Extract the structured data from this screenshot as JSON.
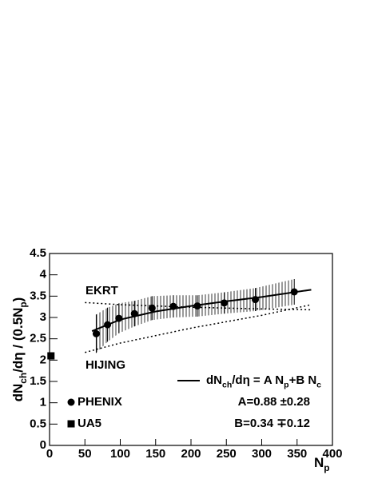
{
  "chart_data": {
    "type": "scatter",
    "xlim": [
      0,
      400
    ],
    "ylim": [
      0,
      4.5
    ],
    "xticks": [
      0,
      50,
      100,
      150,
      200,
      250,
      300,
      350,
      400
    ],
    "yticks": [
      0,
      0.5,
      1,
      1.5,
      2,
      2.5,
      3,
      3.5,
      4,
      4.5
    ],
    "x_label": [
      "N",
      "p"
    ],
    "y_label": [
      "dN",
      "ch",
      "/dη / (0.5N",
      "p",
      ")"
    ],
    "series": [
      {
        "name": "PHENIX",
        "marker": "circle",
        "color": "#000000",
        "x": [
          66,
          82,
          98,
          120,
          145,
          175,
          209,
          247,
          291,
          346
        ],
        "values": [
          2.62,
          2.83,
          2.98,
          3.09,
          3.22,
          3.26,
          3.27,
          3.34,
          3.42,
          3.6
        ],
        "errors": [
          0.45,
          0.4,
          0.35,
          0.3,
          0.28,
          0.26,
          0.25,
          0.25,
          0.27,
          0.3
        ]
      },
      {
        "name": "UA5",
        "marker": "square",
        "color": "#000000",
        "x": [
          2
        ],
        "values": [
          2.1
        ]
      },
      {
        "name": [
          "dN",
          "ch",
          "/dη  = A N",
          "p",
          "+B N",
          "c"
        ],
        "line": "solid",
        "color": "#000000",
        "x": [
          60,
          100,
          150,
          200,
          250,
          300,
          370
        ],
        "values": [
          2.68,
          2.95,
          3.14,
          3.27,
          3.38,
          3.48,
          3.65
        ]
      },
      {
        "name": "EKRT",
        "line": "dotted",
        "color": "#000000",
        "x": [
          50,
          100,
          200,
          300,
          370
        ],
        "values": [
          3.35,
          3.3,
          3.24,
          3.2,
          3.18
        ]
      },
      {
        "name": "HIJING",
        "line": "dotted",
        "color": "#000000",
        "x": [
          50,
          100,
          200,
          300,
          370
        ],
        "values": [
          2.18,
          2.4,
          2.75,
          3.05,
          3.3
        ]
      }
    ],
    "annotations": [
      "A=0.88 ±0.28",
      "B=0.34 ∓0.12"
    ]
  }
}
